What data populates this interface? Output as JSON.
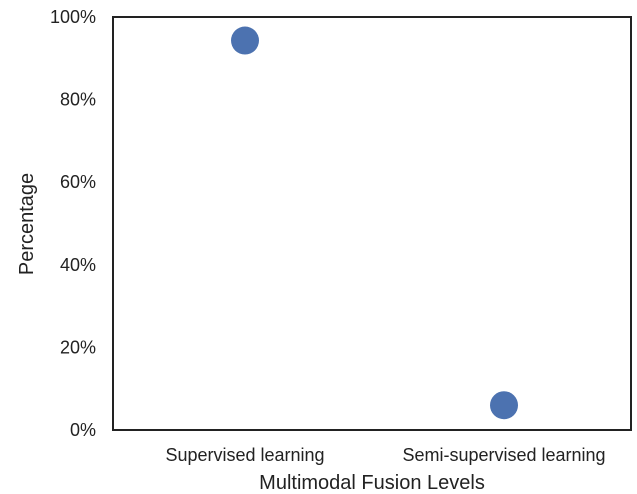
{
  "chart_data": {
    "type": "scatter",
    "title": "",
    "xlabel": "Multimodal Fusion Levels",
    "ylabel": "Percentage",
    "categories": [
      "Supervised learning",
      "Semi-supervised learning"
    ],
    "values": [
      94.3,
      6.0
    ],
    "ylim": [
      0,
      100
    ],
    "yticks": [
      0,
      20,
      40,
      60,
      80,
      100
    ],
    "ytick_labels": [
      "0%",
      "20%",
      "40%",
      "60%",
      "80%",
      "100%"
    ],
    "grid": false,
    "legend": "none",
    "colors": {
      "marker": "#4C72B0",
      "frame": "#222222"
    }
  }
}
